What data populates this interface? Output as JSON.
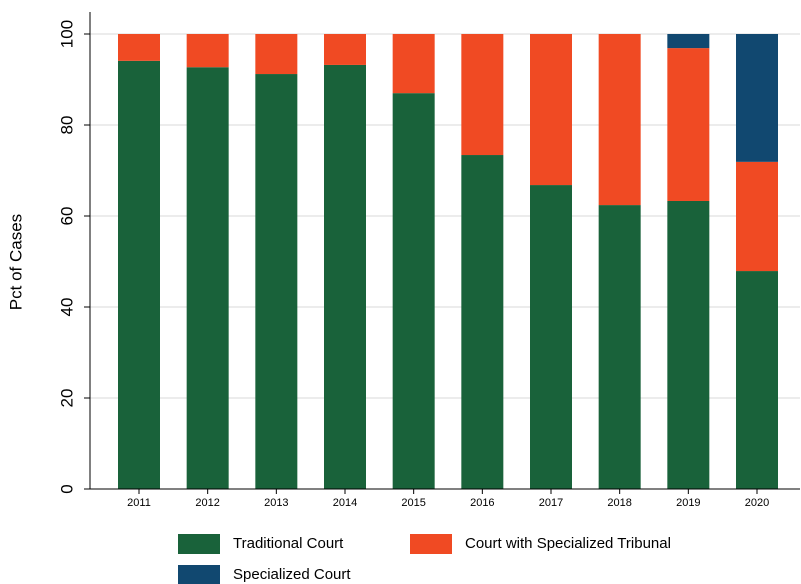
{
  "chart_data": {
    "type": "stacked_bar",
    "y_label": "Pct of Cases",
    "categories": [
      "2011",
      "2012",
      "2013",
      "2014",
      "2015",
      "2016",
      "2017",
      "2018",
      "2019",
      "2020"
    ],
    "series": [
      {
        "name": "Traditional Court",
        "color": "#19623a",
        "values": [
          94.1,
          92.7,
          91.2,
          93.2,
          87.0,
          73.4,
          66.8,
          62.4,
          63.3,
          47.9
        ]
      },
      {
        "name": "Court with Specialized Tribunal",
        "color": "#f04a23",
        "values": [
          5.9,
          7.3,
          8.8,
          6.8,
          13.0,
          26.6,
          33.2,
          37.6,
          33.6,
          24.0
        ]
      },
      {
        "name": "Specialized Court",
        "color": "#114870",
        "values": [
          0,
          0,
          0,
          0,
          0,
          0,
          0,
          0,
          3.1,
          28.1
        ]
      }
    ],
    "ylim": [
      0,
      100
    ],
    "yticks": [
      0,
      20,
      40,
      60,
      80,
      100
    ],
    "grid": true
  }
}
